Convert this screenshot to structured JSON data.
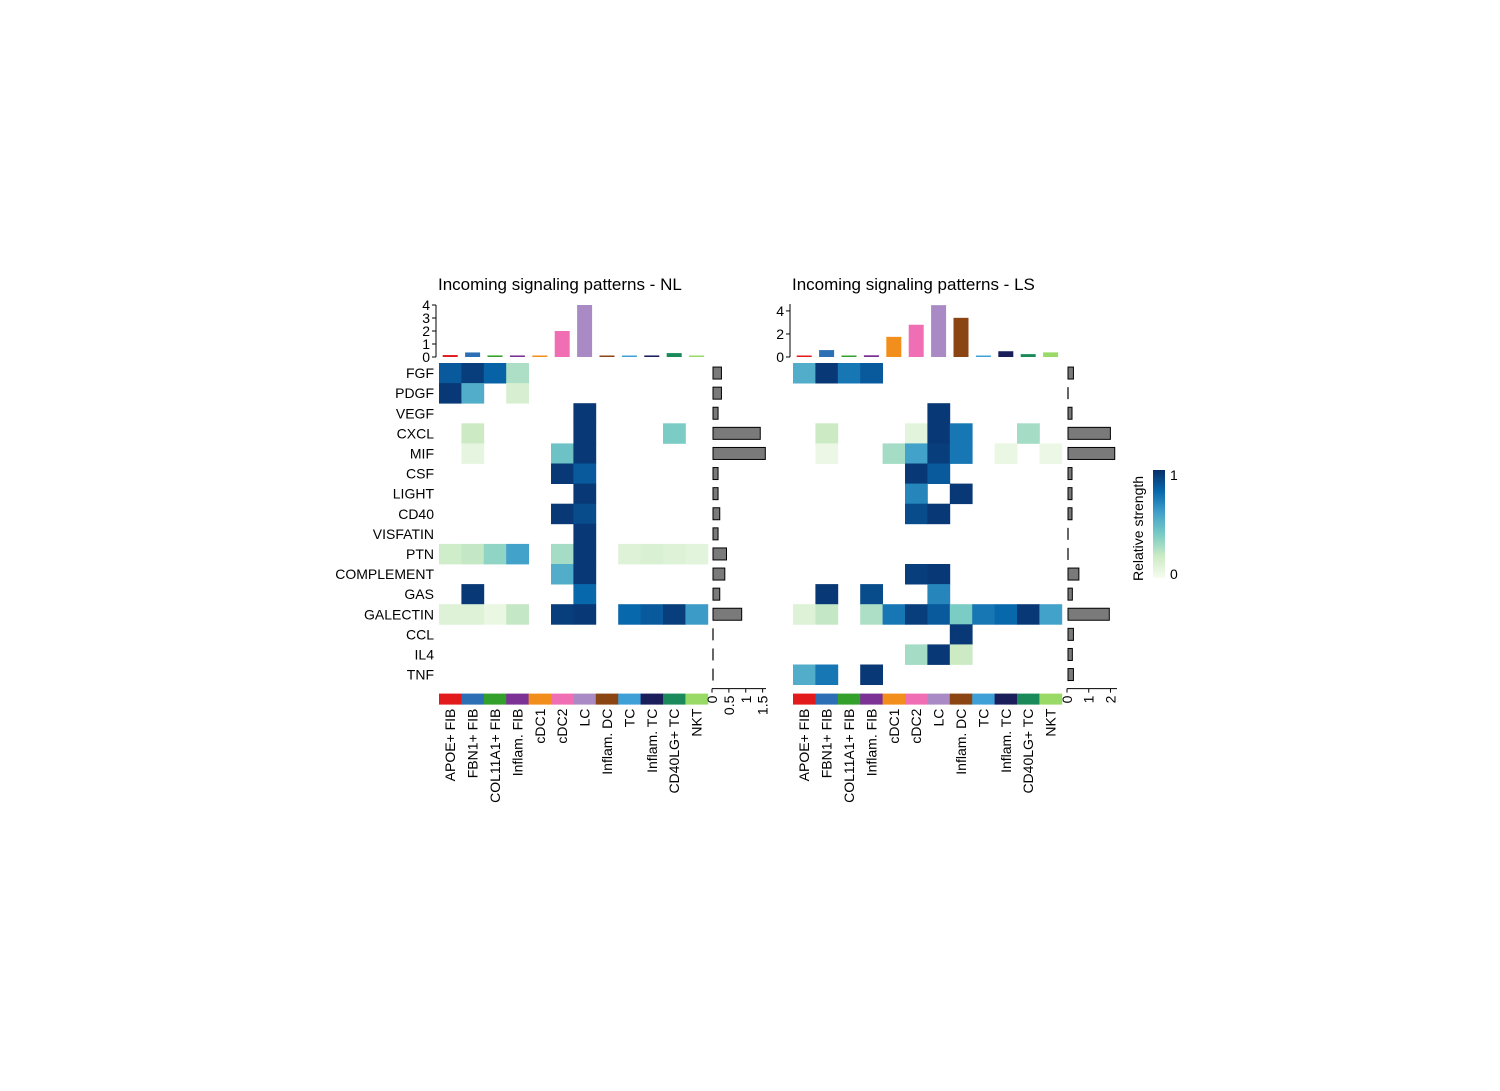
{
  "figure": {
    "legend_title": "Relative strength",
    "legend_max_label": "1",
    "legend_min_label": "0",
    "gradient": [
      "#f7fcf0",
      "#ccebc5",
      "#7bccc4",
      "#43a2ca",
      "#0868ac",
      "#08306b"
    ]
  },
  "chart_data": [
    {
      "type": "heatmap",
      "title": "Incoming signaling patterns - NL",
      "rows": [
        "FGF",
        "PDGF",
        "VEGF",
        "CXCL",
        "MIF",
        "CSF",
        "LIGHT",
        "CD40",
        "VISFATIN",
        "PTN",
        "COMPLEMENT",
        "GAS",
        "GALECTIN",
        "CCL",
        "IL4",
        "TNF"
      ],
      "columns": [
        "APOE+ FIB",
        "FBN1+ FIB",
        "COL11A1+ FIB",
        "Inflam. FIB",
        "cDC1",
        "cDC2",
        "LC",
        "Inflam. DC",
        "TC",
        "Inflam. TC",
        "CD40LG+ TC",
        "NKT"
      ],
      "column_colors": [
        "#e31a1c",
        "#2c6fb5",
        "#33a02c",
        "#7b3294",
        "#f28e1c",
        "#f06fb4",
        "#a98ac4",
        "#8b4513",
        "#3fa0d8",
        "#1a1f5c",
        "#1a8a5a",
        "#99d966"
      ],
      "values": [
        [
          0.85,
          0.95,
          0.82,
          0.28,
          0,
          0,
          0,
          0,
          0,
          0,
          0,
          0
        ],
        [
          0.97,
          0.55,
          0,
          0.15,
          0,
          0,
          0,
          0,
          0,
          0,
          0,
          0
        ],
        [
          0,
          0,
          0,
          0,
          0,
          0,
          0.97,
          0,
          0,
          0,
          0,
          0
        ],
        [
          0,
          0.2,
          0,
          0,
          0,
          0,
          0.97,
          0,
          0,
          0,
          0.4,
          0
        ],
        [
          0,
          0.08,
          0,
          0,
          0,
          0.45,
          0.97,
          0,
          0,
          0,
          0,
          0
        ],
        [
          0,
          0,
          0,
          0,
          0,
          0.97,
          0.85,
          0,
          0,
          0,
          0,
          0
        ],
        [
          0,
          0,
          0,
          0,
          0,
          0,
          0.97,
          0,
          0,
          0,
          0,
          0
        ],
        [
          0,
          0,
          0,
          0,
          0,
          0.97,
          0.9,
          0,
          0,
          0,
          0,
          0
        ],
        [
          0,
          0,
          0,
          0,
          0,
          0,
          0.97,
          0,
          0,
          0,
          0,
          0
        ],
        [
          0.18,
          0.22,
          0.35,
          0.6,
          0,
          0.3,
          0.97,
          0,
          0.12,
          0.14,
          0.12,
          0.1
        ],
        [
          0,
          0,
          0,
          0,
          0,
          0.55,
          0.97,
          0,
          0,
          0,
          0,
          0
        ],
        [
          0,
          0.97,
          0,
          0,
          0,
          0,
          0.8,
          0,
          0,
          0,
          0,
          0
        ],
        [
          0.12,
          0.12,
          0.06,
          0.22,
          0,
          0.95,
          0.97,
          0,
          0.8,
          0.85,
          0.95,
          0.62
        ],
        [
          0,
          0,
          0,
          0,
          0,
          0,
          0,
          0,
          0,
          0,
          0,
          0
        ],
        [
          0,
          0,
          0,
          0,
          0,
          0,
          0,
          0,
          0,
          0,
          0,
          0
        ],
        [
          0,
          0,
          0,
          0,
          0,
          0,
          0,
          0,
          0,
          0,
          0,
          0
        ]
      ],
      "column_totals": [
        0.15,
        0.35,
        0.12,
        0.12,
        0.05,
        2.0,
        4.0,
        0.05,
        0.1,
        0.12,
        0.3,
        0.08
      ],
      "top_axis": {
        "ylim": [
          0,
          4
        ],
        "ticks": [
          0,
          1,
          2,
          3,
          4
        ],
        "tick_labels": [
          "0",
          "1",
          "2",
          "3",
          "4"
        ]
      },
      "row_totals": [
        0.25,
        0.25,
        0.15,
        1.4,
        1.55,
        0.15,
        0.15,
        0.2,
        0.15,
        0.4,
        0.35,
        0.2,
        0.85,
        0,
        0,
        0
      ],
      "right_axis": {
        "xlim": [
          0,
          1.6
        ],
        "ticks": [
          0,
          0.5,
          1,
          1.5
        ],
        "tick_labels": [
          "0",
          "0.5",
          "1",
          "1.5"
        ]
      },
      "show_top_bar": true
    },
    {
      "type": "heatmap",
      "title": "Incoming signaling patterns - LS",
      "rows": [
        "FGF",
        "PDGF",
        "VEGF",
        "CXCL",
        "MIF",
        "CSF",
        "LIGHT",
        "CD40",
        "VISFATIN",
        "PTN",
        "COMPLEMENT",
        "GAS",
        "GALECTIN",
        "CCL",
        "IL4",
        "TNF"
      ],
      "columns": [
        "APOE+ FIB",
        "FBN1+ FIB",
        "COL11A1+ FIB",
        "Inflam. FIB",
        "cDC1",
        "cDC2",
        "LC",
        "Inflam. DC",
        "TC",
        "Inflam. TC",
        "CD40LG+ TC",
        "NKT"
      ],
      "column_colors": [
        "#e31a1c",
        "#2c6fb5",
        "#33a02c",
        "#7b3294",
        "#f28e1c",
        "#f06fb4",
        "#a98ac4",
        "#8b4513",
        "#3fa0d8",
        "#1a1f5c",
        "#1a8a5a",
        "#99d966"
      ],
      "values": [
        [
          0.55,
          0.97,
          0.75,
          0.85,
          0,
          0,
          0,
          0,
          0,
          0,
          0,
          0
        ],
        [
          0,
          0,
          0,
          0,
          0,
          0,
          0,
          0,
          0,
          0,
          0,
          0
        ],
        [
          0,
          0,
          0,
          0,
          0,
          0,
          0.97,
          0,
          0,
          0,
          0,
          0
        ],
        [
          0,
          0.2,
          0,
          0,
          0,
          0.1,
          0.97,
          0.75,
          0,
          0,
          0.3,
          0
        ],
        [
          0,
          0.05,
          0,
          0,
          0.3,
          0.6,
          0.95,
          0.75,
          0,
          0.06,
          0,
          0.05
        ],
        [
          0,
          0,
          0,
          0,
          0,
          0.97,
          0.85,
          0,
          0,
          0,
          0,
          0
        ],
        [
          0,
          0,
          0,
          0,
          0,
          0.7,
          0,
          0.97,
          0,
          0,
          0,
          0
        ],
        [
          0,
          0,
          0,
          0,
          0,
          0.9,
          0.97,
          0,
          0,
          0,
          0,
          0
        ],
        [
          0,
          0,
          0,
          0,
          0,
          0,
          0,
          0,
          0,
          0,
          0,
          0
        ],
        [
          0,
          0,
          0,
          0,
          0,
          0,
          0,
          0,
          0,
          0,
          0,
          0
        ],
        [
          0,
          0,
          0,
          0,
          0,
          0.95,
          0.97,
          0,
          0,
          0,
          0,
          0
        ],
        [
          0,
          0.97,
          0,
          0.9,
          0,
          0,
          0.7,
          0,
          0,
          0,
          0,
          0
        ],
        [
          0.12,
          0.22,
          0,
          0.28,
          0.75,
          0.95,
          0.85,
          0.4,
          0.75,
          0.8,
          0.97,
          0.6
        ],
        [
          0,
          0,
          0,
          0,
          0,
          0,
          0,
          0.97,
          0,
          0,
          0,
          0
        ],
        [
          0,
          0,
          0,
          0,
          0,
          0.3,
          0.97,
          0.2,
          0,
          0,
          0,
          0
        ],
        [
          0.55,
          0.75,
          0,
          0.97,
          0,
          0,
          0,
          0,
          0,
          0,
          0,
          0
        ]
      ],
      "column_totals": [
        0.1,
        0.6,
        0.1,
        0.15,
        1.75,
        2.8,
        4.5,
        3.4,
        0.1,
        0.5,
        0.25,
        0.4
      ],
      "top_axis": {
        "ylim": [
          0,
          4.6
        ],
        "ticks": [
          0,
          2,
          4
        ],
        "tick_labels": [
          "0",
          "2",
          "4"
        ]
      },
      "row_totals": [
        0.25,
        0,
        0.1,
        1.95,
        2.15,
        0.15,
        0.15,
        0.15,
        0,
        0,
        0.5,
        0.2,
        1.9,
        0.25,
        0.2,
        0.25
      ],
      "right_axis": {
        "xlim": [
          0,
          2.3
        ],
        "ticks": [
          0,
          1,
          2
        ],
        "tick_labels": [
          "0",
          "1",
          "2"
        ]
      },
      "show_top_bar": true
    }
  ]
}
